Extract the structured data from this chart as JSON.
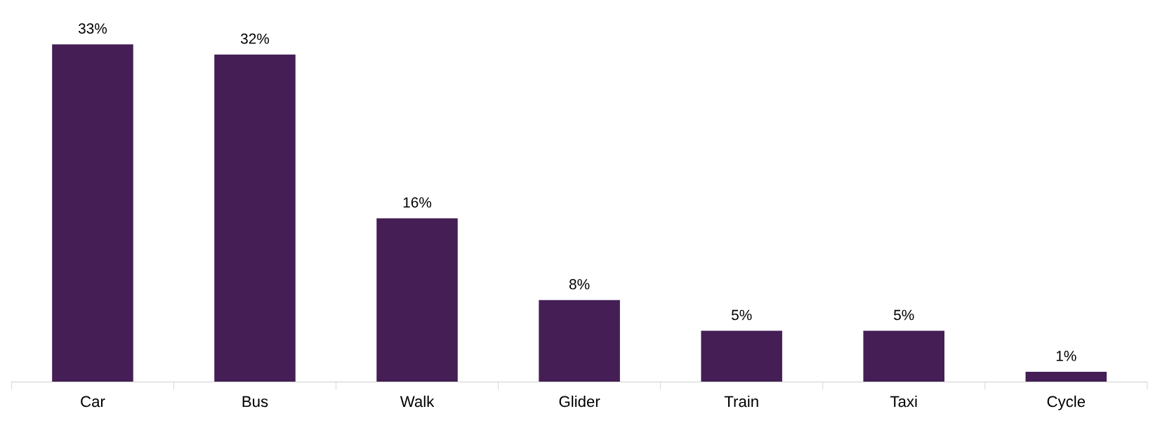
{
  "chart_data": {
    "type": "bar",
    "categories": [
      "Car",
      "Bus",
      "Walk",
      "Glider",
      "Train",
      "Taxi",
      "Cycle"
    ],
    "values": [
      33,
      32,
      16,
      8,
      5,
      5,
      1
    ],
    "value_labels": [
      "33%",
      "32%",
      "16%",
      "8%",
      "5%",
      "5%",
      "1%"
    ],
    "color": "#441e55",
    "grid": false,
    "legend": false,
    "tick_labels": "x"
  }
}
